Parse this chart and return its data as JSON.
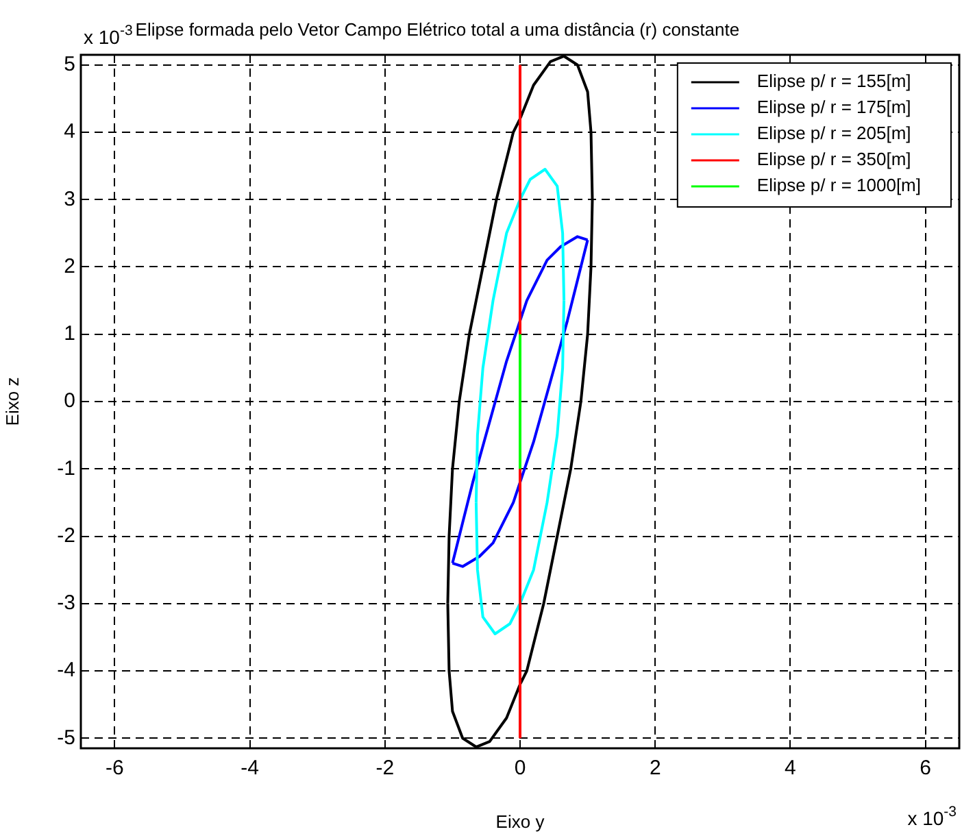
{
  "chart_data": {
    "type": "line",
    "title": "Elipse formada pelo Vetor Campo Elétrico total a uma distância (r) constante",
    "xlabel": "Eixo y",
    "ylabel": "Eixo z",
    "annotations": [
      "x 10$^{-3}$",
      "x 10$^{-3}$"
    ],
    "xlim": [
      -6.5,
      6.5
    ],
    "xticks": [
      -6,
      -4,
      -2,
      0,
      2,
      4,
      6
    ],
    "ylim": [
      -5.15,
      5.15
    ],
    "yticks": [
      -5,
      -4,
      -3,
      -2,
      -1,
      0,
      1,
      2,
      3,
      4,
      5
    ],
    "grid": true,
    "legend": "top right",
    "line_style": "solid",
    "marker": "none",
    "series": [
      {
        "name": "Elipse p/ r = 155[m]",
        "color": "#000000",
        "x": [
          -1.07,
          -1.05,
          -1.0,
          -0.9,
          -0.75,
          -0.55,
          -0.35,
          -0.1,
          0,
          0.2,
          0.45,
          0.65,
          0.85,
          1.0,
          1.05,
          1.07
        ],
        "values": [
          -3,
          -2,
          -1,
          0,
          1,
          2,
          3,
          4,
          4.2,
          4.7,
          5.05,
          5.13,
          5.0,
          4.6,
          4.0,
          3.0
        ]
      },
      {
        "name": "Elipse p/ r = 175[m]",
        "color": "#0000ff",
        "x": [
          -1.0,
          -0.95,
          -0.7,
          -0.45,
          -0.2,
          0.1,
          0.4,
          0.6,
          0.85,
          1.0
        ],
        "values": [
          -2.4,
          -2.2,
          -1.2,
          -0.3,
          0.6,
          1.5,
          2.1,
          2.3,
          2.45,
          2.4
        ]
      },
      {
        "name": "Elipse p/ r = 205[m]",
        "color": "#00ffff",
        "x": [
          -0.65,
          -0.63,
          -0.55,
          -0.4,
          -0.2,
          0,
          0.15,
          0.37,
          0.55,
          0.63,
          0.65
        ],
        "values": [
          -1.5,
          -0.5,
          0.5,
          1.5,
          2.5,
          3,
          3.3,
          3.45,
          3.2,
          2.5,
          1.5
        ]
      },
      {
        "color": "#000000",
        "x": [
          -1.07,
          -1.05,
          -1.0,
          -0.85,
          -0.65,
          -0.45,
          -0.2,
          0,
          0.1,
          0.35,
          0.55,
          0.75,
          0.9,
          1.0,
          1.05,
          1.07
        ],
        "values": [
          -3,
          -4,
          -4.6,
          -5,
          -5.13,
          -5.05,
          -4.7,
          -4.2,
          -4,
          -3,
          -2,
          -1,
          0,
          1,
          2,
          3
        ]
      },
      {
        "color": "#0000ff",
        "x": [
          -1.0,
          -0.85,
          -0.6,
          -0.4,
          -0.1,
          0.2,
          0.45,
          0.7,
          0.95,
          1.0
        ],
        "values": [
          -2.4,
          -2.45,
          -2.3,
          -2.1,
          -1.5,
          -0.6,
          0.3,
          1.2,
          2.2,
          2.4
        ]
      },
      {
        "color": "#00ffff",
        "x": [
          -0.65,
          -0.63,
          -0.55,
          -0.37,
          -0.15,
          0,
          0.2,
          0.4,
          0.55,
          0.63,
          0.65
        ],
        "values": [
          -1.5,
          -2.5,
          -3.2,
          -3.45,
          -3.3,
          -3,
          -2.5,
          -1.5,
          -0.5,
          0.5,
          1.5
        ]
      },
      {
        "name": "Elipse p/ r = 350[m]",
        "color": "#ff0000",
        "x": [
          0,
          0,
          0
        ],
        "values": [
          5,
          0,
          -5
        ]
      },
      {
        "name": "Elipse p/ r = 1000[m]",
        "color": "#00ff00",
        "x": [
          0,
          0,
          0
        ],
        "values": [
          1,
          0,
          -1
        ]
      }
    ]
  }
}
